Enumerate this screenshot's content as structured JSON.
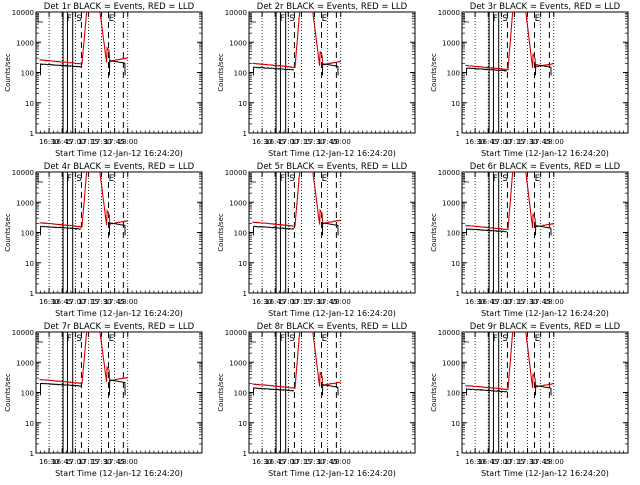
{
  "colors": {
    "background": "#ffffff",
    "axes": "#000000",
    "events": "#000000",
    "lld": "#d40000"
  },
  "chart_data": [
    {
      "type": "line",
      "title": "Det 1r BLACK = Events, RED = LLD",
      "xlabel": "Start Time (12-Jan-12 16:24:20)",
      "ylabel": "Counts/sec",
      "yscale": "log",
      "ylim": [
        1,
        10000
      ],
      "xlim_min": [
        1620,
        1810
      ],
      "x_ticks": [
        {
          "t": 1635,
          "label": "16:30"
        },
        {
          "t": 1650,
          "label": "16:45"
        },
        {
          "t": 1665,
          "label": "17:00"
        },
        {
          "t": 1680,
          "label": "17:15"
        },
        {
          "t": 1695,
          "label": "17:30"
        },
        {
          "t": 1710,
          "label": "17:45"
        },
        {
          "t": 1725,
          "label": "18:00"
        }
      ],
      "y_ticks": [
        "1",
        "10",
        "100",
        "1000",
        "10000"
      ],
      "markers": [
        {
          "t": 1662,
          "label": "F"
        },
        {
          "t": 1673,
          "label": "S"
        },
        {
          "t": 1710,
          "label": "E"
        }
      ],
      "base_black": 190,
      "base_red": 260,
      "peak": 10000,
      "black_drop": 80
    },
    {
      "type": "line",
      "title": "Det 2r BLACK = Events, RED = LLD",
      "xlabel": "Start Time (12-Jan-12 16:24:20)",
      "ylabel": "Counts/sec",
      "yscale": "log",
      "ylim": [
        1,
        10000
      ],
      "xlim_min": [
        1620,
        1810
      ],
      "x_ticks": [
        {
          "t": 1635,
          "label": "16:30"
        },
        {
          "t": 1650,
          "label": "16:45"
        },
        {
          "t": 1665,
          "label": "17:00"
        },
        {
          "t": 1680,
          "label": "17:15"
        },
        {
          "t": 1695,
          "label": "17:30"
        },
        {
          "t": 1710,
          "label": "17:45"
        },
        {
          "t": 1725,
          "label": "18:00"
        }
      ],
      "y_ticks": [
        "1",
        "10",
        "100",
        "1000",
        "10000"
      ],
      "markers": [
        {
          "t": 1662,
          "label": "F"
        },
        {
          "t": 1673,
          "label": "S"
        },
        {
          "t": 1710,
          "label": "E"
        }
      ],
      "base_black": 150,
      "base_red": 200,
      "peak": 10000,
      "black_drop": 80
    },
    {
      "type": "line",
      "title": "Det 3r BLACK = Events, RED = LLD",
      "xlabel": "Start Time (12-Jan-12 16:24:20)",
      "ylabel": "Counts/sec",
      "yscale": "log",
      "ylim": [
        1,
        10000
      ],
      "xlim_min": [
        1620,
        1810
      ],
      "x_ticks": [
        {
          "t": 1635,
          "label": "16:30"
        },
        {
          "t": 1650,
          "label": "16:45"
        },
        {
          "t": 1665,
          "label": "17:00"
        },
        {
          "t": 1680,
          "label": "17:15"
        },
        {
          "t": 1695,
          "label": "17:30"
        },
        {
          "t": 1710,
          "label": "17:45"
        },
        {
          "t": 1725,
          "label": "18:00"
        }
      ],
      "y_ticks": [
        "1",
        "10",
        "100",
        "1000",
        "10000"
      ],
      "markers": [
        {
          "t": 1662,
          "label": "F"
        },
        {
          "t": 1673,
          "label": "S"
        },
        {
          "t": 1710,
          "label": "E"
        }
      ],
      "base_black": 140,
      "base_red": 170,
      "peak": 10000,
      "black_drop": 80
    },
    {
      "type": "line",
      "title": "Det 4r BLACK = Events, RED = LLD",
      "xlabel": "Start Time (12-Jan-12 16:24:20)",
      "ylabel": "Counts/sec",
      "yscale": "log",
      "ylim": [
        1,
        10000
      ],
      "xlim_min": [
        1620,
        1810
      ],
      "x_ticks": [
        {
          "t": 1635,
          "label": "16:30"
        },
        {
          "t": 1650,
          "label": "16:45"
        },
        {
          "t": 1665,
          "label": "17:00"
        },
        {
          "t": 1680,
          "label": "17:15"
        },
        {
          "t": 1695,
          "label": "17:30"
        },
        {
          "t": 1710,
          "label": "17:45"
        },
        {
          "t": 1725,
          "label": "18:00"
        }
      ],
      "y_ticks": [
        "1",
        "10",
        "100",
        "1000",
        "10000"
      ],
      "markers": [
        {
          "t": 1662,
          "label": "F"
        },
        {
          "t": 1673,
          "label": "S"
        },
        {
          "t": 1710,
          "label": "E"
        }
      ],
      "base_black": 160,
      "base_red": 210,
      "peak": 10000,
      "black_drop": 80
    },
    {
      "type": "line",
      "title": "Det 5r BLACK = Events, RED = LLD",
      "xlabel": "Start Time (12-Jan-12 16:24:20)",
      "ylabel": "Counts/sec",
      "yscale": "log",
      "ylim": [
        1,
        10000
      ],
      "xlim_min": [
        1620,
        1810
      ],
      "x_ticks": [
        {
          "t": 1635,
          "label": "16:30"
        },
        {
          "t": 1650,
          "label": "16:45"
        },
        {
          "t": 1665,
          "label": "17:00"
        },
        {
          "t": 1680,
          "label": "17:15"
        },
        {
          "t": 1695,
          "label": "17:30"
        },
        {
          "t": 1710,
          "label": "17:45"
        },
        {
          "t": 1725,
          "label": "18:00"
        }
      ],
      "y_ticks": [
        "1",
        "10",
        "100",
        "1000",
        "10000"
      ],
      "markers": [
        {
          "t": 1662,
          "label": "F"
        },
        {
          "t": 1673,
          "label": "S"
        },
        {
          "t": 1710,
          "label": "E"
        }
      ],
      "base_black": 160,
      "base_red": 220,
      "peak": 10000,
      "black_drop": 80
    },
    {
      "type": "line",
      "title": "Det 6r BLACK = Events, RED = LLD",
      "xlabel": "Start Time (12-Jan-12 16:24:20)",
      "ylabel": "Counts/sec",
      "yscale": "log",
      "ylim": [
        1,
        10000
      ],
      "xlim_min": [
        1620,
        1810
      ],
      "x_ticks": [
        {
          "t": 1635,
          "label": "16:30"
        },
        {
          "t": 1650,
          "label": "16:45"
        },
        {
          "t": 1665,
          "label": "17:00"
        },
        {
          "t": 1680,
          "label": "17:15"
        },
        {
          "t": 1695,
          "label": "17:30"
        },
        {
          "t": 1710,
          "label": "17:45"
        },
        {
          "t": 1725,
          "label": "18:00"
        }
      ],
      "y_ticks": [
        "1",
        "10",
        "100",
        "1000",
        "10000"
      ],
      "markers": [
        {
          "t": 1662,
          "label": "F"
        },
        {
          "t": 1673,
          "label": "S"
        },
        {
          "t": 1710,
          "label": "E"
        }
      ],
      "base_black": 130,
      "base_red": 170,
      "peak": 10000,
      "black_drop": 80
    },
    {
      "type": "line",
      "title": "Det 7r BLACK = Events, RED = LLD",
      "xlabel": "Start Time (12-Jan-12 16:24:20)",
      "ylabel": "Counts/sec",
      "yscale": "log",
      "ylim": [
        1,
        10000
      ],
      "xlim_min": [
        1620,
        1810
      ],
      "x_ticks": [
        {
          "t": 1635,
          "label": "16:30"
        },
        {
          "t": 1650,
          "label": "16:45"
        },
        {
          "t": 1665,
          "label": "17:00"
        },
        {
          "t": 1680,
          "label": "17:15"
        },
        {
          "t": 1695,
          "label": "17:30"
        },
        {
          "t": 1710,
          "label": "17:45"
        },
        {
          "t": 1725,
          "label": "18:00"
        }
      ],
      "y_ticks": [
        "1",
        "10",
        "100",
        "1000",
        "10000"
      ],
      "markers": [
        {
          "t": 1662,
          "label": "F"
        },
        {
          "t": 1673,
          "label": "S"
        },
        {
          "t": 1710,
          "label": "E"
        }
      ],
      "base_black": 200,
      "base_red": 270,
      "peak": 10000,
      "black_drop": 80
    },
    {
      "type": "line",
      "title": "Det 8r BLACK = Events, RED = LLD",
      "xlabel": "Start Time (12-Jan-12 16:24:20)",
      "ylabel": "Counts/sec",
      "yscale": "log",
      "ylim": [
        1,
        10000
      ],
      "xlim_min": [
        1620,
        1810
      ],
      "x_ticks": [
        {
          "t": 1635,
          "label": "16:30"
        },
        {
          "t": 1650,
          "label": "16:45"
        },
        {
          "t": 1665,
          "label": "17:00"
        },
        {
          "t": 1680,
          "label": "17:15"
        },
        {
          "t": 1695,
          "label": "17:30"
        },
        {
          "t": 1710,
          "label": "17:45"
        },
        {
          "t": 1725,
          "label": "18:00"
        }
      ],
      "y_ticks": [
        "1",
        "10",
        "100",
        "1000",
        "10000"
      ],
      "markers": [
        {
          "t": 1662,
          "label": "F"
        },
        {
          "t": 1673,
          "label": "S"
        },
        {
          "t": 1710,
          "label": "E"
        }
      ],
      "base_black": 140,
      "base_red": 190,
      "peak": 10000,
      "black_drop": 80
    },
    {
      "type": "line",
      "title": "Det 9r BLACK = Events, RED = LLD",
      "xlabel": "Start Time (12-Jan-12 16:24:20)",
      "ylabel": "Counts/sec",
      "yscale": "log",
      "ylim": [
        1,
        10000
      ],
      "xlim_min": [
        1620,
        1810
      ],
      "x_ticks": [
        {
          "t": 1635,
          "label": "16:30"
        },
        {
          "t": 1650,
          "label": "16:45"
        },
        {
          "t": 1665,
          "label": "17:00"
        },
        {
          "t": 1680,
          "label": "17:15"
        },
        {
          "t": 1695,
          "label": "17:30"
        },
        {
          "t": 1710,
          "label": "17:45"
        },
        {
          "t": 1725,
          "label": "18:00"
        }
      ],
      "y_ticks": [
        "1",
        "10",
        "100",
        "1000",
        "10000"
      ],
      "markers": [
        {
          "t": 1662,
          "label": "F"
        },
        {
          "t": 1673,
          "label": "S"
        },
        {
          "t": 1710,
          "label": "E"
        }
      ],
      "base_black": 130,
      "base_red": 170,
      "peak": 10000,
      "black_drop": 80
    }
  ]
}
